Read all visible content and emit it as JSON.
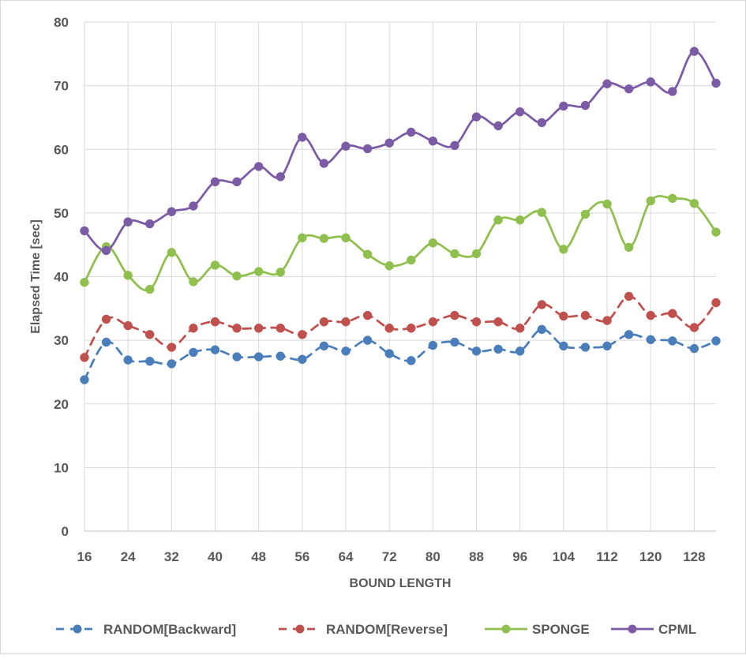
{
  "chart_data": {
    "type": "line",
    "title": "",
    "xlabel": "BOUND LENGTH",
    "ylabel": "Elapsed Time [sec]",
    "xlim": [
      16,
      132
    ],
    "ylim": [
      0,
      80
    ],
    "x_ticks": [
      16,
      24,
      32,
      40,
      48,
      56,
      64,
      72,
      80,
      88,
      96,
      104,
      112,
      120,
      128
    ],
    "y_ticks": [
      0,
      10,
      20,
      30,
      40,
      50,
      60,
      70,
      80
    ],
    "grid": true,
    "legend_position": "bottom",
    "x": [
      16,
      20,
      24,
      28,
      32,
      36,
      40,
      44,
      48,
      52,
      56,
      60,
      64,
      68,
      72,
      76,
      80,
      84,
      88,
      92,
      96,
      100,
      104,
      108,
      112,
      116,
      120,
      124,
      128,
      132
    ],
    "series": [
      {
        "name": "RANDOM[Backward]",
        "color": "#4a7ebb",
        "dashed": true,
        "smooth": true,
        "values": [
          23.8,
          29.7,
          26.9,
          26.7,
          26.3,
          28.1,
          28.5,
          27.4,
          27.4,
          27.5,
          27.0,
          29.1,
          28.3,
          30.0,
          27.9,
          26.8,
          29.2,
          29.7,
          28.3,
          28.6,
          28.3,
          31.7,
          29.1,
          28.9,
          29.1,
          30.9,
          30.1,
          29.9,
          28.7,
          29.9
        ]
      },
      {
        "name": "RANDOM[Reverse]",
        "color": "#c0504d",
        "dashed": true,
        "smooth": true,
        "values": [
          27.3,
          33.3,
          32.3,
          30.9,
          28.9,
          31.9,
          32.9,
          31.9,
          31.9,
          31.9,
          30.9,
          32.9,
          32.9,
          33.9,
          31.9,
          31.9,
          32.9,
          33.9,
          32.9,
          32.9,
          31.9,
          35.6,
          33.8,
          33.9,
          33.1,
          36.9,
          33.9,
          34.2,
          32.0,
          35.9
        ]
      },
      {
        "name": "SPONGE",
        "color": "#8fbf4d",
        "dashed": false,
        "smooth": true,
        "values": [
          39.1,
          44.7,
          40.2,
          38.0,
          43.8,
          39.2,
          41.8,
          40.1,
          40.8,
          40.7,
          46.1,
          46.0,
          46.1,
          43.5,
          41.7,
          42.6,
          45.3,
          43.6,
          43.6,
          48.9,
          48.9,
          50.1,
          44.3,
          49.8,
          51.4,
          44.6,
          51.9,
          52.3,
          51.5,
          47.0
        ]
      },
      {
        "name": "CPML",
        "color": "#7b5aa6",
        "dashed": false,
        "smooth": true,
        "values": [
          47.2,
          44.1,
          48.6,
          48.3,
          50.2,
          51.1,
          54.9,
          54.9,
          57.3,
          55.7,
          61.9,
          57.8,
          60.5,
          60.1,
          61.0,
          62.7,
          61.3,
          60.6,
          65.1,
          63.7,
          65.9,
          64.2,
          66.8,
          66.9,
          70.3,
          69.5,
          70.6,
          69.1,
          75.4,
          70.4
        ]
      }
    ]
  }
}
